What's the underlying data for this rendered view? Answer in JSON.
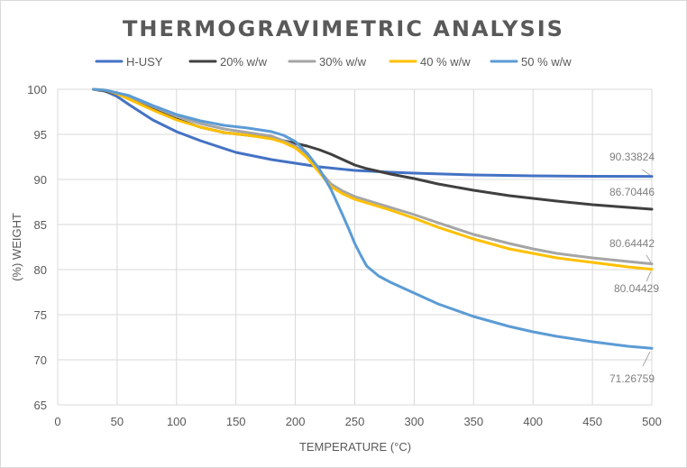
{
  "chart_data": {
    "type": "line",
    "title": "THERMOGRAVIMETRIC ANALYSIS",
    "xlabel": "TEMPERATURE (°C)",
    "ylabel": "(%) WEIGHT",
    "xlim": [
      0,
      500
    ],
    "ylim": [
      65,
      100
    ],
    "xticks": [
      0,
      50,
      100,
      150,
      200,
      250,
      300,
      350,
      400,
      450,
      500
    ],
    "yticks": [
      65,
      70,
      75,
      80,
      85,
      90,
      95,
      100
    ],
    "grid": true,
    "legend_position": "top",
    "series": [
      {
        "name": "H-USY",
        "color": "#4472c4",
        "x": [
          30,
          40,
          50,
          60,
          80,
          100,
          120,
          150,
          180,
          200,
          220,
          250,
          280,
          300,
          350,
          400,
          450,
          500
        ],
        "y": [
          100,
          99.8,
          99.2,
          98.3,
          96.6,
          95.3,
          94.3,
          93.0,
          92.2,
          91.8,
          91.4,
          91.0,
          90.8,
          90.7,
          90.5,
          90.4,
          90.35,
          90.33824
        ],
        "end_label": "90.33824"
      },
      {
        "name": "20% w/w",
        "color": "#404040",
        "x": [
          30,
          40,
          50,
          60,
          80,
          100,
          120,
          140,
          160,
          180,
          190,
          200,
          210,
          220,
          230,
          240,
          250,
          260,
          270,
          280,
          300,
          320,
          350,
          380,
          400,
          420,
          450,
          480,
          500
        ],
        "y": [
          100,
          99.8,
          99.5,
          99.0,
          97.8,
          96.7,
          95.8,
          95.2,
          94.9,
          94.6,
          94.3,
          94.0,
          93.7,
          93.3,
          92.8,
          92.2,
          91.6,
          91.2,
          90.9,
          90.6,
          90.1,
          89.5,
          88.8,
          88.2,
          87.9,
          87.6,
          87.2,
          86.9,
          86.70446
        ],
        "end_label": "86.70446"
      },
      {
        "name": "30% w/w",
        "color": "#a5a5a5",
        "x": [
          30,
          40,
          50,
          60,
          80,
          100,
          120,
          140,
          160,
          180,
          190,
          200,
          210,
          220,
          230,
          240,
          250,
          260,
          280,
          300,
          320,
          350,
          380,
          400,
          420,
          450,
          480,
          500
        ],
        "y": [
          100,
          99.9,
          99.6,
          99.2,
          98.1,
          97.0,
          96.2,
          95.6,
          95.2,
          94.8,
          94.3,
          93.7,
          92.6,
          91.0,
          89.5,
          88.7,
          88.1,
          87.7,
          86.9,
          86.1,
          85.2,
          83.9,
          82.9,
          82.3,
          81.8,
          81.3,
          80.9,
          80.64442
        ],
        "end_label": "80.64442"
      },
      {
        "name": "40 % w/w",
        "color": "#ffc000",
        "x": [
          30,
          40,
          50,
          60,
          80,
          100,
          120,
          140,
          160,
          180,
          190,
          200,
          210,
          220,
          230,
          240,
          250,
          260,
          280,
          300,
          320,
          350,
          380,
          400,
          420,
          450,
          480,
          500
        ],
        "y": [
          100,
          99.9,
          99.5,
          98.9,
          97.7,
          96.6,
          95.8,
          95.2,
          94.9,
          94.5,
          94.1,
          93.5,
          92.4,
          90.8,
          89.2,
          88.4,
          87.8,
          87.4,
          86.6,
          85.7,
          84.7,
          83.4,
          82.3,
          81.8,
          81.3,
          80.8,
          80.3,
          80.04429
        ],
        "end_label": "80.04429"
      },
      {
        "name": "50 % w/w",
        "color": "#5b9bd5",
        "x": [
          30,
          40,
          50,
          60,
          80,
          100,
          120,
          140,
          160,
          180,
          190,
          200,
          210,
          220,
          230,
          240,
          245,
          250,
          255,
          260,
          270,
          280,
          300,
          320,
          350,
          380,
          400,
          420,
          450,
          480,
          500
        ],
        "y": [
          100,
          99.9,
          99.6,
          99.3,
          98.2,
          97.2,
          96.5,
          96.0,
          95.7,
          95.3,
          94.9,
          94.2,
          92.9,
          91.2,
          88.9,
          86.0,
          84.5,
          82.9,
          81.6,
          80.4,
          79.3,
          78.6,
          77.4,
          76.2,
          74.8,
          73.7,
          73.1,
          72.6,
          72.0,
          71.5,
          71.26759
        ],
        "end_label": "71.26759"
      }
    ]
  }
}
